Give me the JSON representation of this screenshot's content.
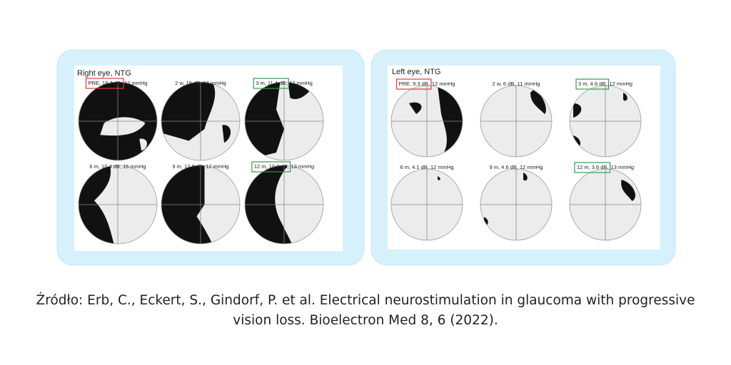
{
  "left_panel": {
    "title": "Right eye, NTG",
    "plots": [
      {
        "label": "PRE, 18.7 dB,",
        "rest": "12 mmHg",
        "box": "#e03c3c"
      },
      {
        "label": "2 w, 15 dB, 12 mmHg"
      },
      {
        "label": "3 m, 11.4 dB,",
        "rest": "12 mmHg",
        "box": "#2e9e4f"
      },
      {
        "label": "6 m, 10.4 dB, 15 mmHg"
      },
      {
        "label": "9 m, 12.8 dB, 12 mmHg"
      },
      {
        "label": "12 m, 10.2 dB,",
        "rest": "13 mmHg",
        "box": "#2e9e4f"
      }
    ]
  },
  "right_panel": {
    "title": "Left eye, NTG",
    "plots": [
      {
        "label": "PRE, 9.3 dB,",
        "rest": "12 mmHg",
        "box": "#e03c3c"
      },
      {
        "label": "2 w, 6 dB, 11 mmHg"
      },
      {
        "label": "3 m, 4.6 dB,",
        "rest": "12 mmHg",
        "box": "#2e9e4f"
      },
      {
        "label": "6 m, 4.1 dB, 12 mmHg"
      },
      {
        "label": "9 m, 4.6 dB, 12 mmHg"
      },
      {
        "label": "12 m, 3.6 dB,",
        "rest": "13 mmHg",
        "box": "#2e9e4f"
      }
    ]
  },
  "source": [
    "Źródło:  Erb, C., Eckert, S., Gindorf, P. et al. Electrical neurostimulation in glaucoma with progressive",
    "vision loss. Bioelectron Med 8, 6 (2022)."
  ]
}
